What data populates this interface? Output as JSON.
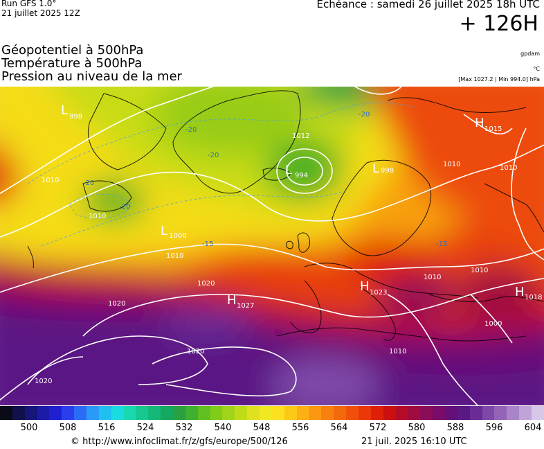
{
  "header": {
    "run_title": "Run GFS 1.0°",
    "run_date": "21 juillet 2025 12Z",
    "valid_time": "Echéance : samedi 26 juillet 2025 18h UTC",
    "lead_time": "+ 126H",
    "layers": [
      "Géopotentiel à 500hPa",
      "Température à 500hPa",
      "Pression au niveau de la mer"
    ],
    "units": [
      "gpdam",
      "°C",
      "[Max 1027.2 | Min 994.0] hPa"
    ]
  },
  "map": {
    "pressure_centers": [
      {
        "type": "L",
        "value": "998",
        "at": "west-greenland-sea"
      },
      {
        "type": "L",
        "value": "994",
        "at": "iceland"
      },
      {
        "type": "L",
        "value": "1000",
        "at": "north-atlantic"
      },
      {
        "type": "H",
        "value": "1027",
        "at": "azores"
      },
      {
        "type": "H",
        "value": "1023",
        "at": "alps"
      },
      {
        "type": "H",
        "value": "1018",
        "at": "black-sea"
      },
      {
        "type": "H",
        "value": "1015",
        "at": "barents-sea"
      },
      {
        "type": "L",
        "value": "998",
        "at": "scandinavia"
      },
      {
        "type": "",
        "value": "1012",
        "at": "norwegian-sea"
      }
    ],
    "isobar_labels": [
      "1010",
      "1010",
      "1010",
      "1010",
      "1010",
      "1020",
      "1020",
      "1020",
      "1020",
      "1000",
      "1010",
      "1010",
      "1010"
    ],
    "temperature_labels": [
      "-20",
      "-20",
      "-20",
      "-20",
      "-20",
      "-15",
      "-15"
    ]
  },
  "colorbar": {
    "colors": [
      "#0a0a18",
      "#10104a",
      "#15157a",
      "#1b1ba8",
      "#2020d0",
      "#2a3ef0",
      "#2a6cf6",
      "#2a9af6",
      "#1fc0f0",
      "#18dce0",
      "#18d8b0",
      "#16c890",
      "#14b878",
      "#14a860",
      "#2aa040",
      "#40b030",
      "#60c020",
      "#80cc18",
      "#a0d418",
      "#c0dc18",
      "#e0e020",
      "#f0e820",
      "#fce020",
      "#fcc818",
      "#fcb014",
      "#fc9810",
      "#f8800e",
      "#f4680c",
      "#f0500a",
      "#ec3808",
      "#e02006",
      "#cc1010",
      "#b40c28",
      "#a00c40",
      "#8c0c58",
      "#780c68",
      "#641078",
      "#5a1884",
      "#6a2c94",
      "#7e48a8",
      "#9464b8",
      "#aa84c8",
      "#c0a4d8",
      "#d8c8e8"
    ],
    "ticks": [
      "500",
      "508",
      "516",
      "524",
      "532",
      "540",
      "548",
      "556",
      "564",
      "572",
      "580",
      "588",
      "596",
      "604"
    ]
  },
  "footer": {
    "credit": "© http://www.infoclimat.fr/z/gfs/europe/500/126",
    "issued": "21 juil. 2025 16:10 UTC"
  }
}
